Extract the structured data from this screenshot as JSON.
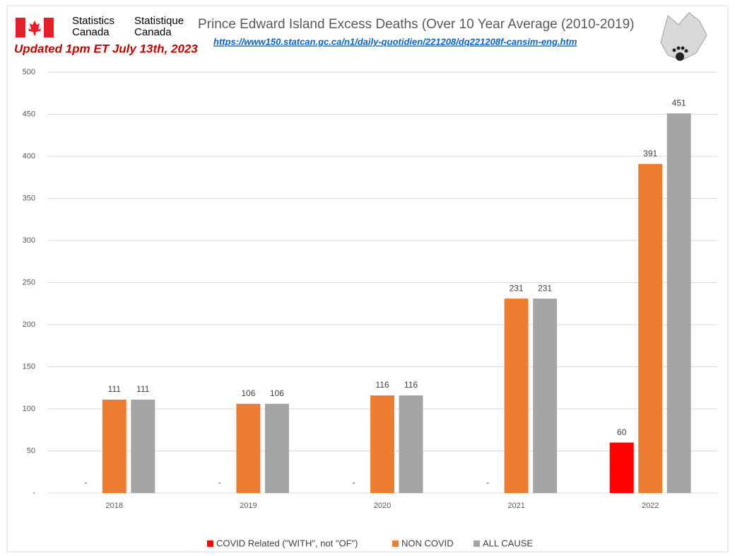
{
  "logo": {
    "en": [
      "Statistics",
      "Canada"
    ],
    "fr": [
      "Statistique",
      "Canada"
    ]
  },
  "chart_data": {
    "type": "bar",
    "title": "Prince Edward Island Excess Deaths (Over 10 Year Average (2010-2019)",
    "subtitle": "https://www150.statcan.gc.ca/n1/daily-quotidien/221208/dq221208f-cansim-eng.htm",
    "annotation": "Updated 1pm ET July 13th, 2023",
    "categories": [
      "2018",
      "2019",
      "2020",
      "2021",
      "2022"
    ],
    "series": [
      {
        "name": "COVID Related (\"WITH\", not \"OF\")",
        "color": "#ff0000",
        "values": [
          0,
          0,
          0,
          0,
          60
        ],
        "value_labels": [
          "-",
          "-",
          "-",
          "-",
          "60"
        ]
      },
      {
        "name": "NON COVID",
        "color": "#ed7d31",
        "values": [
          111,
          106,
          116,
          231,
          391
        ]
      },
      {
        "name": "ALL CAUSE",
        "color": "#a5a5a5",
        "values": [
          111,
          106,
          116,
          231,
          451
        ]
      }
    ],
    "ylim": [
      0,
      500
    ],
    "yticks": [
      {
        "value": 0,
        "label": "-"
      },
      50,
      100,
      150,
      200,
      250,
      300,
      350,
      400,
      450,
      500
    ],
    "grid": true,
    "legend": "bottom"
  }
}
